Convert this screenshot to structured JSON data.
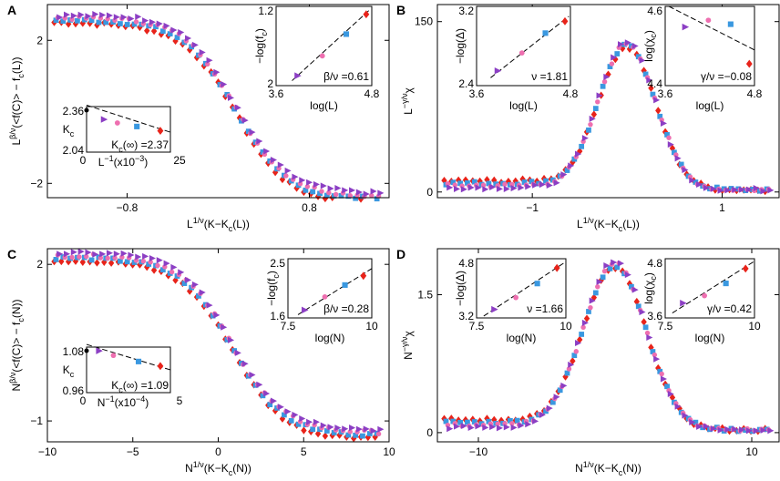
{
  "figure": {
    "colors": {
      "red": "#e8231a",
      "blue": "#3a98e0",
      "pink": "#ee6fb0",
      "purple": "#8c3fc4",
      "axis": "#000000"
    }
  },
  "chart_data": [
    {
      "id": "A",
      "type": "scatter",
      "label": "A",
      "xlabel": "L^{1/ν}(K−K_c(L))",
      "ylabel": "L^{β/ν}(<f(C)> − f_c(L))",
      "xlim": [
        -1.5,
        1.5
      ],
      "ylim": [
        -2.4,
        3.0
      ],
      "xticks": [
        -0.8,
        0.8
      ],
      "xtick_labels": [
        "−0.8",
        "0.8"
      ],
      "yticks": [
        -2,
        2
      ],
      "ytick_labels": [
        "−2",
        "2"
      ],
      "curve": {
        "kind": "tanh",
        "center": 0.15,
        "amplitude": 2.5,
        "offset": 0.1,
        "scale": 0.45
      },
      "series": [
        {
          "name": "largest",
          "color": "red",
          "marker": "diamond"
        },
        {
          "name": "large",
          "color": "blue",
          "marker": "square"
        },
        {
          "name": "medium",
          "color": "pink",
          "marker": "circle"
        },
        {
          "name": "small",
          "color": "purple",
          "marker": "triangle"
        }
      ],
      "insets": [
        {
          "id": "A-scaling",
          "position": "top-right",
          "xlabel": "log(L)",
          "ylabel": "−log(f_c)",
          "xlim": [
            3.6,
            4.8
          ],
          "ylim": [
            1.2,
            2.0
          ],
          "xtick_labels": [
            "3.6",
            "4.8"
          ],
          "ytick_labels": [
            "1.2",
            "2"
          ],
          "points": [
            [
              3.87,
              1.3
            ],
            [
              4.18,
              1.5
            ],
            [
              4.48,
              1.72
            ],
            [
              4.73,
              1.92
            ]
          ],
          "fit": [
            [
              3.8,
              1.25
            ],
            [
              4.78,
              1.97
            ]
          ],
          "annotation": "β/ν =0.61"
        },
        {
          "id": "A-kc",
          "position": "bottom-left",
          "xlabel": "L^{−1}(x10^{−3})",
          "ylabel": "K_c",
          "xlim": [
            0,
            25
          ],
          "ylim": [
            2.04,
            2.36
          ],
          "xtick_labels": [
            "0",
            "25"
          ],
          "ytick_labels": [
            "2.36",
            "2.04"
          ],
          "points": [
            [
              5.2,
              2.27
            ],
            [
              9.2,
              2.245
            ],
            [
              15.0,
              2.22
            ],
            [
              22.0,
              2.19
            ]
          ],
          "fit": [
            [
              0,
              2.37
            ],
            [
              25,
              2.18
            ]
          ],
          "annotation": "K_c(∞) =2.37"
        }
      ]
    },
    {
      "id": "B",
      "type": "scatter",
      "label": "B",
      "xlabel": "L^{1/ν}(K−K_c(L))",
      "ylabel": "L^{−γ/ν}χ",
      "xlim": [
        -2.0,
        1.6
      ],
      "ylim": [
        -5,
        165
      ],
      "xticks": [
        -1,
        1
      ],
      "xtick_labels": [
        "−1",
        "1"
      ],
      "yticks": [
        0,
        150
      ],
      "ytick_labels": [
        "0",
        "150"
      ],
      "curve": {
        "kind": "peak",
        "center": 0.0,
        "height": 128,
        "base": 2,
        "width": 0.3
      },
      "series": [
        {
          "name": "largest",
          "color": "red",
          "marker": "diamond"
        },
        {
          "name": "large",
          "color": "blue",
          "marker": "square"
        },
        {
          "name": "medium",
          "color": "pink",
          "marker": "circle"
        },
        {
          "name": "small",
          "color": "purple",
          "marker": "triangle"
        }
      ],
      "insets": [
        {
          "id": "B-nu",
          "position": "top-left",
          "xlabel": "log(L)",
          "ylabel": "−log(Δ)",
          "xlim": [
            3.6,
            4.8
          ],
          "ylim": [
            2.4,
            3.2
          ],
          "xtick_labels": [
            "3.6",
            "4.8"
          ],
          "ytick_labels": [
            "3.2",
            "2.4"
          ],
          "points": [
            [
              3.87,
              2.55
            ],
            [
              4.18,
              2.73
            ],
            [
              4.48,
              2.93
            ],
            [
              4.73,
              3.05
            ]
          ],
          "fit": [
            [
              3.78,
              2.48
            ],
            [
              4.78,
              3.1
            ]
          ],
          "annotation": "ν =1.81"
        },
        {
          "id": "B-gamma",
          "position": "top-right",
          "xlabel": "log(L)",
          "ylabel": "log(χ_c)",
          "xlim": [
            3.6,
            4.8
          ],
          "ylim": [
            4.4,
            4.6
          ],
          "xtick_labels": [
            "3.6",
            "4.8"
          ],
          "ytick_labels": [
            "4.6",
            "4.4"
          ],
          "points": [
            [
              3.87,
              4.548
            ],
            [
              4.18,
              4.565
            ],
            [
              4.48,
              4.555
            ],
            [
              4.73,
              4.455
            ]
          ],
          "fit": [
            [
              3.65,
              4.6
            ],
            [
              4.8,
              4.49
            ]
          ],
          "annotation": "γ/ν =−0.08"
        }
      ]
    },
    {
      "id": "C",
      "type": "scatter",
      "label": "C",
      "xlabel": "N^{1/ν}(K−K_c(N))",
      "ylabel": "N^{β/ν}(<f(C)> − f_c(N))",
      "xlim": [
        -10,
        10
      ],
      "ylim": [
        -1.4,
        2.3
      ],
      "xticks": [
        -10,
        -5,
        0,
        5,
        10
      ],
      "xtick_labels": [
        "−10",
        "−5",
        "0",
        "5",
        "10"
      ],
      "yticks": [
        -1,
        2
      ],
      "ytick_labels": [
        "−1",
        "2"
      ],
      "curve": {
        "kind": "tanh",
        "center": 0.8,
        "amplitude": 1.7,
        "offset": 0.45,
        "scale": 3.0
      },
      "series": [
        {
          "name": "largest",
          "color": "red",
          "marker": "diamond"
        },
        {
          "name": "large",
          "color": "blue",
          "marker": "square"
        },
        {
          "name": "medium",
          "color": "pink",
          "marker": "circle"
        },
        {
          "name": "small",
          "color": "purple",
          "marker": "triangle"
        }
      ],
      "insets": [
        {
          "id": "C-scaling",
          "position": "top-right",
          "xlabel": "log(N)",
          "ylabel": "−log(f_c)",
          "xlim": [
            7.5,
            10
          ],
          "ylim": [
            1.6,
            2.5
          ],
          "xtick_labels": [
            "7.5",
            "10"
          ],
          "ytick_labels": [
            "2.5",
            "1.6"
          ],
          "points": [
            [
              8.0,
              1.72
            ],
            [
              8.6,
              1.92
            ],
            [
              9.2,
              2.1
            ],
            [
              9.75,
              2.24
            ]
          ],
          "fit": [
            [
              7.8,
              1.65
            ],
            [
              10.0,
              2.35
            ]
          ],
          "annotation": "β/ν =0.28"
        },
        {
          "id": "C-kc",
          "position": "bottom-left",
          "xlabel": "N^{−1}(x10^{−4})",
          "ylabel": "K_c",
          "xlim": [
            0,
            5
          ],
          "ylim": [
            0.96,
            1.08
          ],
          "xtick_labels": [
            "0",
            "5"
          ],
          "ytick_labels": [
            "1.08",
            "0.96"
          ],
          "points": [
            [
              0.75,
              1.07
            ],
            [
              1.6,
              1.058
            ],
            [
              3.1,
              1.042
            ],
            [
              4.4,
              1.03
            ]
          ],
          "fit": [
            [
              0,
              1.087
            ],
            [
              5,
              1.02
            ]
          ],
          "annotation": "K_c(∞) =1.09"
        }
      ]
    },
    {
      "id": "D",
      "type": "scatter",
      "label": "D",
      "xlabel": "N^{1/ν}(K−K_c(N))",
      "ylabel": "N^{−γ/ν}χ",
      "xlim": [
        -13,
        12
      ],
      "ylim": [
        -0.1,
        2.0
      ],
      "xticks": [
        -10,
        10
      ],
      "xtick_labels": [
        "−10",
        "10"
      ],
      "yticks": [
        0,
        1.5
      ],
      "ytick_labels": [
        "0",
        "1.5"
      ],
      "curve": {
        "kind": "peak",
        "center": 0.0,
        "height": 1.8,
        "base": 0.03,
        "width": 2.3
      },
      "series": [
        {
          "name": "largest",
          "color": "red",
          "marker": "diamond"
        },
        {
          "name": "large",
          "color": "blue",
          "marker": "square"
        },
        {
          "name": "medium",
          "color": "pink",
          "marker": "circle"
        },
        {
          "name": "small",
          "color": "purple",
          "marker": "triangle"
        }
      ],
      "insets": [
        {
          "id": "D-nu",
          "position": "top-left",
          "xlabel": "log(N)",
          "ylabel": "−log(Δ)",
          "xlim": [
            7.5,
            10
          ],
          "ylim": [
            3.2,
            4.8
          ],
          "xtick_labels": [
            "7.5",
            "10"
          ],
          "ytick_labels": [
            "4.8",
            "3.2"
          ],
          "points": [
            [
              8.0,
              3.43
            ],
            [
              8.6,
              3.75
            ],
            [
              9.2,
              4.13
            ],
            [
              9.75,
              4.55
            ]
          ],
          "fit": [
            [
              7.7,
              3.25
            ],
            [
              10.0,
              4.72
            ]
          ],
          "annotation": "ν =1.66"
        },
        {
          "id": "D-gamma",
          "position": "top-right",
          "xlabel": "log(N)",
          "ylabel": "log(χ_c)",
          "xlim": [
            7.5,
            10
          ],
          "ylim": [
            3.6,
            4.8
          ],
          "xtick_labels": [
            "7.5",
            "10"
          ],
          "ytick_labels": [
            "4.8",
            "3.6"
          ],
          "points": [
            [
              8.0,
              3.9
            ],
            [
              8.6,
              4.05
            ],
            [
              9.2,
              4.3
            ],
            [
              9.75,
              4.6
            ]
          ],
          "fit": [
            [
              7.7,
              3.7
            ],
            [
              10.0,
              4.75
            ]
          ],
          "annotation": "γ/ν =0.42"
        }
      ]
    }
  ]
}
